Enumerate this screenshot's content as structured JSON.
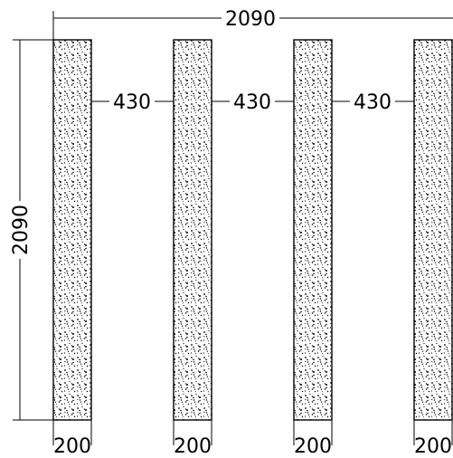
{
  "dimensions": {
    "overall_width": "2090",
    "overall_height": "2090",
    "gaps": [
      "430",
      "430",
      "430"
    ],
    "post_widths": [
      "200",
      "200",
      "200",
      "200"
    ]
  },
  "posts": [
    {
      "label": "post-1"
    },
    {
      "label": "post-2"
    },
    {
      "label": "post-3"
    },
    {
      "label": "post-4"
    }
  ],
  "colors": {
    "line": "#000000",
    "fill": "#ffffff",
    "hatch": "#000000"
  }
}
